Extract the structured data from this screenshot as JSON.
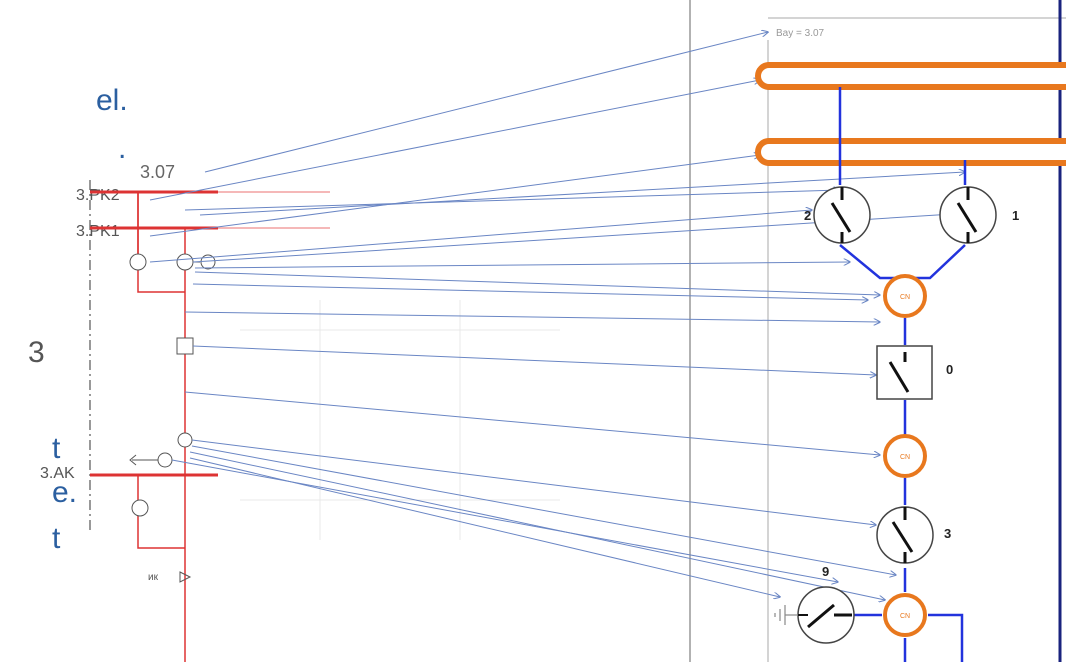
{
  "side_fragments": [
    "el.",
    ".",
    "t",
    "e.",
    "t"
  ],
  "left_sld": {
    "bay_label": "3.07",
    "bus_labels": [
      "3.PK2",
      "3.PK1"
    ],
    "bay_number": "3",
    "feeder_label": "3.AK",
    "small_label": "ик",
    "symbol_labels": [
      "2",
      "1",
      "0",
      "3",
      "9"
    ]
  },
  "right_sld": {
    "bay_title": "Bay = 3.07",
    "switch_labels": [
      "2",
      "1",
      "0",
      "3",
      "9"
    ],
    "ct_label": "CN"
  },
  "colors": {
    "busbar": "#e8781e",
    "link": "#2233dd",
    "arrow": "#6a86c4",
    "red_line": "#dd3333",
    "text": "#2b5fa0"
  }
}
